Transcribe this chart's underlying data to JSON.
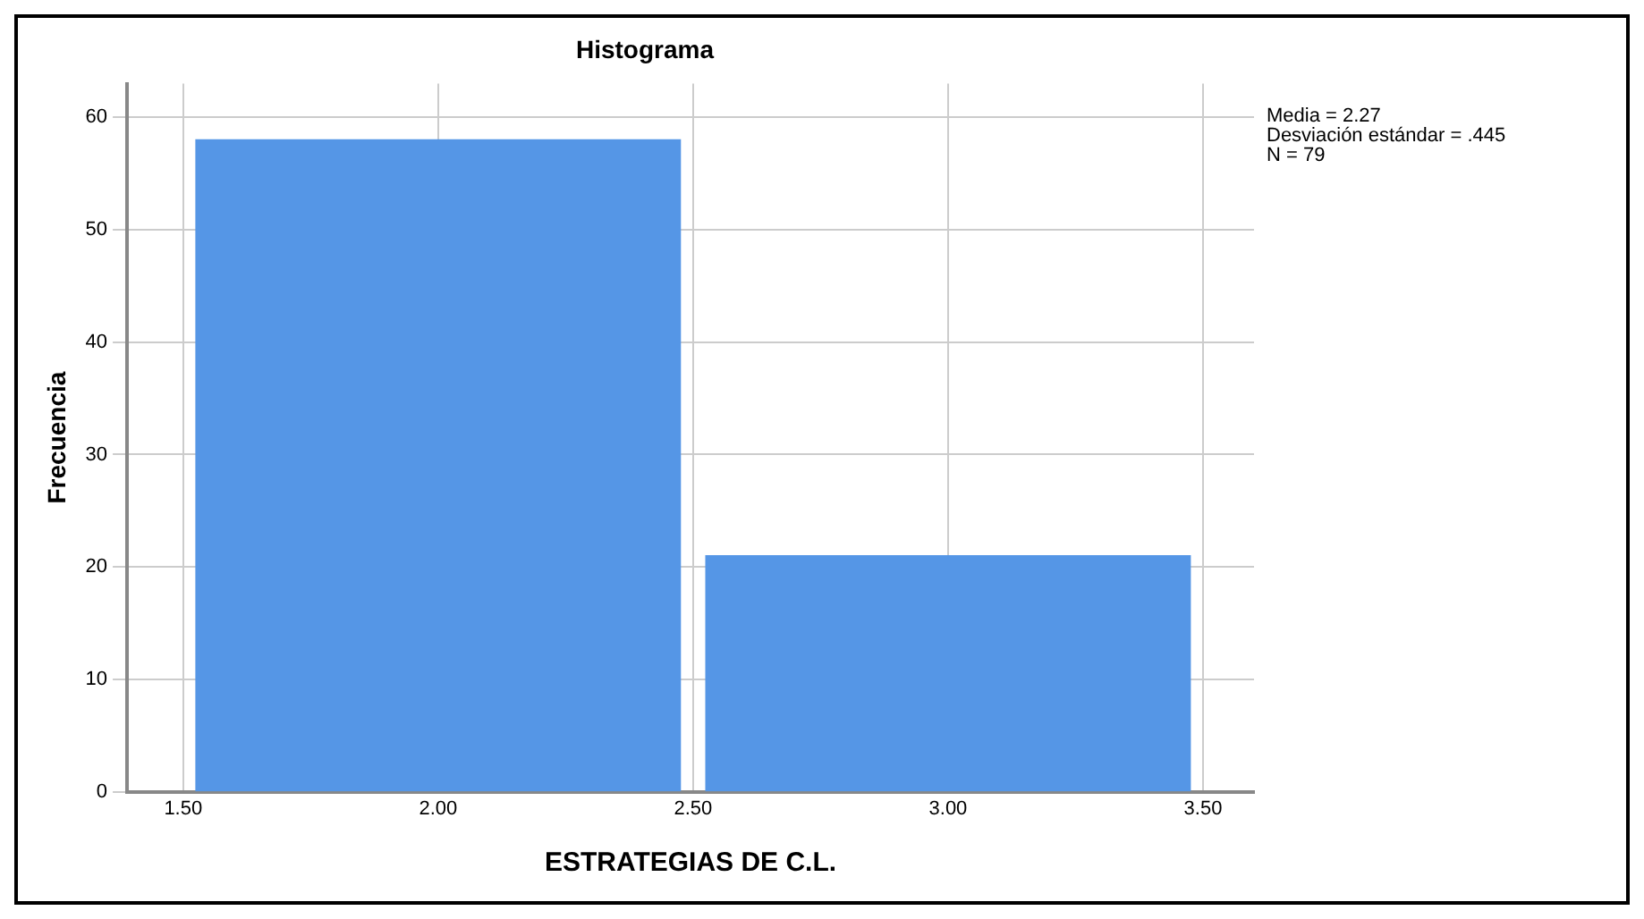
{
  "chart_data": {
    "type": "histogram",
    "title": "Histograma",
    "xlabel": "ESTRATEGIAS DE C.L.",
    "ylabel": "Frecuencia",
    "bins": [
      1.5,
      2.5,
      3.5
    ],
    "values": [
      58,
      21
    ],
    "color": "#5596e6",
    "xlim": [
      1.39,
      3.6
    ],
    "xticks": [
      {
        "value": 1.5,
        "label": "1.50"
      },
      {
        "value": 2,
        "label": "2.00"
      },
      {
        "value": 2.5,
        "label": "2.50"
      },
      {
        "value": 3,
        "label": "3.00"
      },
      {
        "value": 3.5,
        "label": "3.50"
      }
    ],
    "ylim": [
      0,
      63
    ],
    "yticks": [
      0,
      10,
      20,
      30,
      40,
      50,
      60
    ],
    "grid": true,
    "annotations": [
      "Media = 2.27",
      "Desviación estándar = .445",
      "N = 79"
    ]
  }
}
